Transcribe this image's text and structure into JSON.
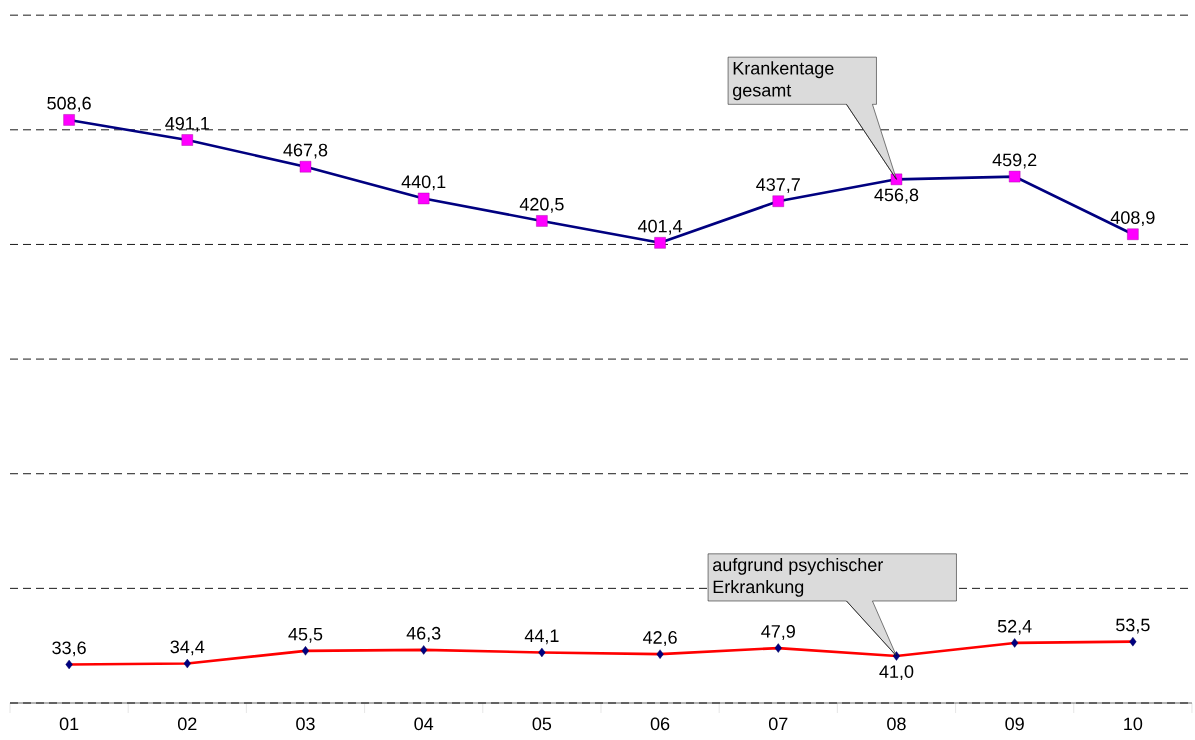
{
  "chart_data": {
    "type": "line",
    "categories": [
      "01",
      "02",
      "03",
      "04",
      "05",
      "06",
      "07",
      "08",
      "09",
      "10"
    ],
    "series": [
      {
        "color": "#000080",
        "colors": [
          "#ff00ff",
          "#ff00ff",
          "#ff00ff",
          "#ff00ff",
          "#ff00ff",
          "#ff00ff",
          "#ff00ff",
          "#ff00ff",
          "#ff00ff",
          "#ff00ff"
        ],
        "marker": "square",
        "values": [
          508.6,
          491.1,
          467.8,
          440.1,
          420.5,
          401.4,
          437.7,
          456.8,
          459.2,
          408.9
        ],
        "value_labels": [
          "508,6",
          "491,1",
          "467,8",
          "440,1",
          "420,5",
          "401,4",
          "437,7",
          "456,8",
          "459,2",
          "408,9"
        ]
      },
      {
        "color": "#ff0000",
        "colors": [
          "#000080",
          "#000080",
          "#000080",
          "#000080",
          "#000080",
          "#000080",
          "#000080",
          "#000080",
          "#000080",
          "#000080"
        ],
        "marker": "diamond",
        "values": [
          33.6,
          34.4,
          45.5,
          46.3,
          44.1,
          42.6,
          47.9,
          41.0,
          52.4,
          53.5
        ],
        "value_labels": [
          "33,6",
          "34,4",
          "45,5",
          "46,3",
          "44,1",
          "42,6",
          "47,9",
          "41,0",
          "52,4",
          "53,5"
        ]
      }
    ],
    "grid": "y",
    "annotations": [
      {
        "text": "Krankentage gesamt",
        "x": "08",
        "y": 456.8
      },
      {
        "text": "aufgrund psychischer Erkrankung",
        "x": "08",
        "y": 41.0
      }
    ]
  }
}
